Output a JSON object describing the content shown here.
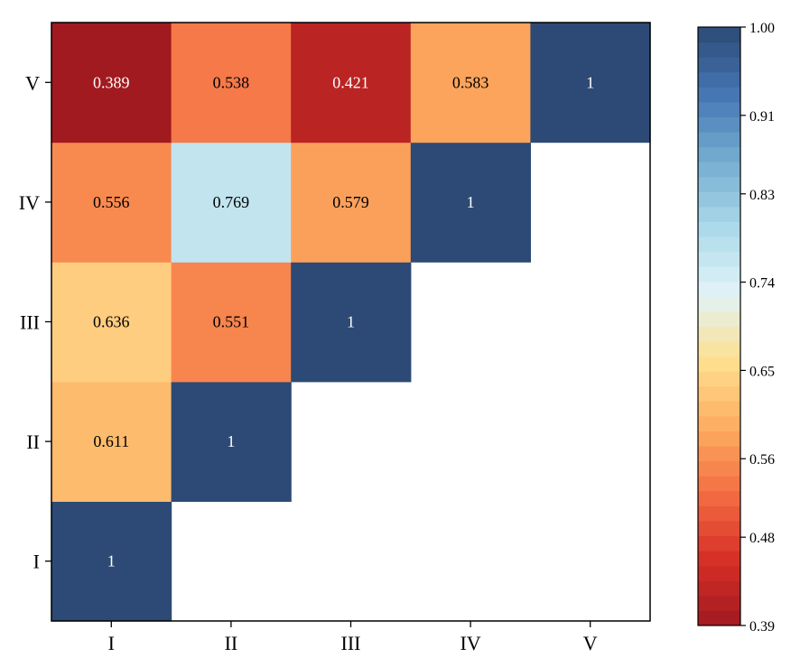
{
  "chart_data": {
    "type": "heatmap",
    "title": "",
    "xlabel": "",
    "ylabel": "",
    "x_categories": [
      "I",
      "II",
      "III",
      "IV",
      "V"
    ],
    "y_categories": [
      "I",
      "II",
      "III",
      "IV",
      "V"
    ],
    "cells": [
      {
        "x": "I",
        "y": "I",
        "value": 1,
        "label": "1"
      },
      {
        "x": "I",
        "y": "II",
        "value": 0.611,
        "label": "0.611"
      },
      {
        "x": "II",
        "y": "II",
        "value": 1,
        "label": "1"
      },
      {
        "x": "I",
        "y": "III",
        "value": 0.636,
        "label": "0.636"
      },
      {
        "x": "II",
        "y": "III",
        "value": 0.551,
        "label": "0.551"
      },
      {
        "x": "III",
        "y": "III",
        "value": 1,
        "label": "1"
      },
      {
        "x": "I",
        "y": "IV",
        "value": 0.556,
        "label": "0.556"
      },
      {
        "x": "II",
        "y": "IV",
        "value": 0.769,
        "label": "0.769"
      },
      {
        "x": "III",
        "y": "IV",
        "value": 0.579,
        "label": "0.579"
      },
      {
        "x": "IV",
        "y": "IV",
        "value": 1,
        "label": "1"
      },
      {
        "x": "I",
        "y": "V",
        "value": 0.389,
        "label": "0.389"
      },
      {
        "x": "II",
        "y": "V",
        "value": 0.538,
        "label": "0.538"
      },
      {
        "x": "III",
        "y": "V",
        "value": 0.421,
        "label": "0.421"
      },
      {
        "x": "IV",
        "y": "V",
        "value": 0.583,
        "label": "0.583"
      },
      {
        "x": "V",
        "y": "V",
        "value": 1,
        "label": "1"
      }
    ],
    "colorbar": {
      "range": [
        0.39,
        1.0
      ],
      "ticks": [
        1.0,
        0.91,
        0.83,
        0.74,
        0.65,
        0.56,
        0.48,
        0.39
      ],
      "tick_labels": [
        "1.00",
        "0.91",
        "0.83",
        "0.74",
        "0.65",
        "0.56",
        "0.48",
        "0.39"
      ],
      "levels": 40,
      "colormap": [
        "#a11a1f",
        "#d73027",
        "#f46d43",
        "#fdae61",
        "#fee090",
        "#e0f3f8",
        "#abd9e9",
        "#74add1",
        "#4575b4",
        "#2c4a75"
      ]
    }
  }
}
